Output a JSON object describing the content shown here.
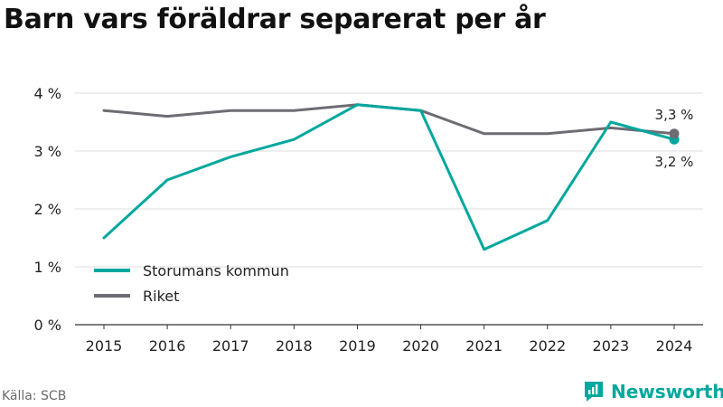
{
  "chart_data": {
    "type": "line",
    "title": "Barn vars föräldrar separerat per år",
    "xlabel": "",
    "ylabel": "",
    "x": [
      "2015",
      "2016",
      "2017",
      "2018",
      "2019",
      "2020",
      "2021",
      "2022",
      "2023",
      "2024"
    ],
    "ylim": [
      0,
      4
    ],
    "yticks": [
      0,
      1,
      2,
      3,
      4
    ],
    "ytick_labels": [
      "0 %",
      "1 %",
      "2 %",
      "3 %",
      "4 %"
    ],
    "grid": true,
    "legend_position": "bottom-left",
    "series": [
      {
        "name": "Storumans kommun",
        "color": "#00a79d",
        "values": [
          1.5,
          2.5,
          2.9,
          3.2,
          3.8,
          3.7,
          1.3,
          1.8,
          3.5,
          3.2
        ],
        "end_label": "3,2 %"
      },
      {
        "name": "Riket",
        "color": "#6e6c73",
        "values": [
          3.7,
          3.6,
          3.7,
          3.7,
          3.8,
          3.7,
          3.3,
          3.3,
          3.4,
          3.3
        ],
        "end_label": "3,3 %"
      }
    ]
  },
  "footer": {
    "source": "Källa: SCB",
    "brand": "Newsworthy",
    "brand_color": "#00a79d",
    "logo_icon": "newsworthy-logo-icon"
  }
}
